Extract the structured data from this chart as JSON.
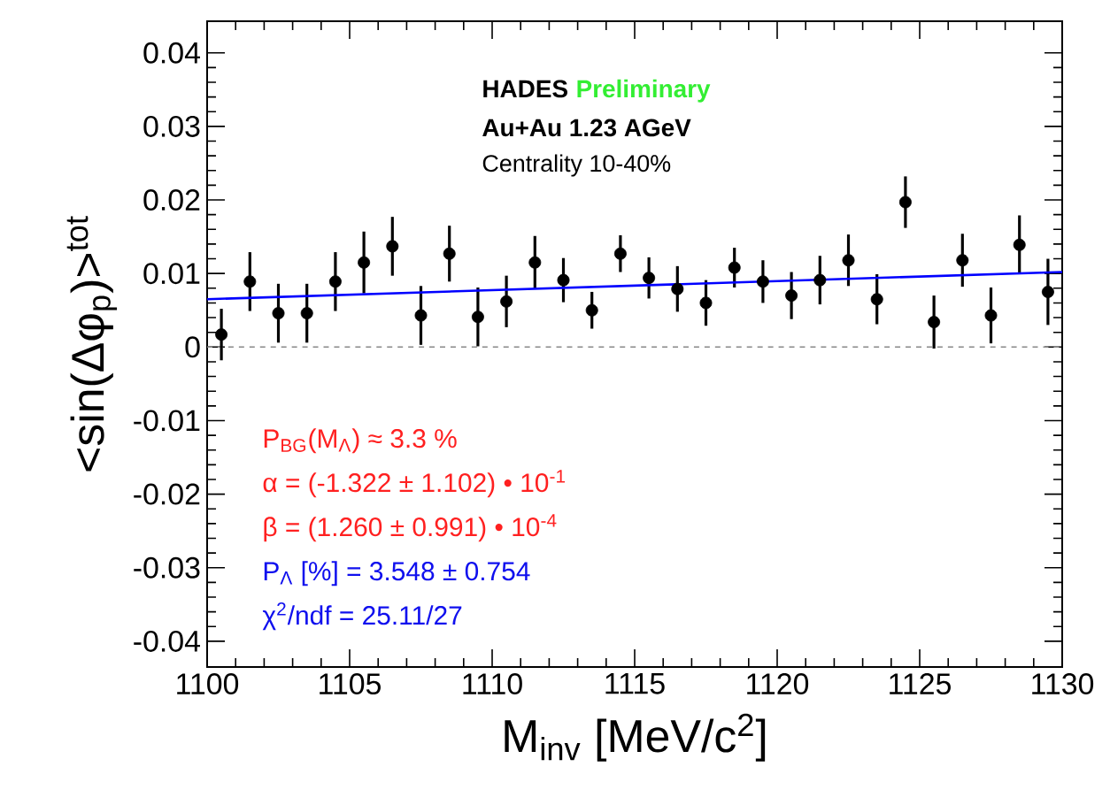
{
  "chart_data": {
    "type": "scatter",
    "xlabel": "M$_{inv}$ [MeV/c$^{2}$]",
    "ylabel": "<sin(Δφ$_{p}$)>$^{tot}$",
    "xlim": [
      1100,
      1130
    ],
    "ylim": [
      -0.0435,
      0.0443
    ],
    "xticks": [
      1100,
      1105,
      1110,
      1115,
      1120,
      1125,
      1130
    ],
    "yticks": [
      -0.04,
      -0.03,
      -0.02,
      -0.01,
      0,
      0.01,
      0.02,
      0.03,
      0.04
    ],
    "grid": false,
    "series": [
      {
        "color": "#000000",
        "x": [
          1100.5,
          1101.5,
          1102.5,
          1103.5,
          1104.5,
          1105.5,
          1106.5,
          1107.5,
          1108.5,
          1109.5,
          1110.5,
          1111.5,
          1112.5,
          1113.5,
          1114.5,
          1115.5,
          1116.5,
          1117.5,
          1118.5,
          1119.5,
          1120.5,
          1121.5,
          1122.5,
          1123.5,
          1124.5,
          1125.5,
          1126.5,
          1127.5,
          1128.5,
          1129.5
        ],
        "values": [
          0.0017,
          0.0089,
          0.0046,
          0.0046,
          0.0089,
          0.0115,
          0.0137,
          0.0043,
          0.0127,
          0.0041,
          0.0062,
          0.0115,
          0.0091,
          0.005,
          0.0127,
          0.0094,
          0.0079,
          0.006,
          0.0108,
          0.0089,
          0.007,
          0.0091,
          0.0118,
          0.0065,
          0.0197,
          0.0034,
          0.0118,
          0.0043,
          0.0139,
          0.0075
        ],
        "errors": [
          0.0035,
          0.004,
          0.004,
          0.004,
          0.004,
          0.0042,
          0.004,
          0.004,
          0.0038,
          0.004,
          0.0035,
          0.0036,
          0.003,
          0.0025,
          0.0025,
          0.0028,
          0.0031,
          0.0031,
          0.0027,
          0.0029,
          0.0032,
          0.0033,
          0.0035,
          0.0034,
          0.0035,
          0.0036,
          0.0036,
          0.0038,
          0.004,
          0.0045
        ]
      },
      {
        "type": "line",
        "color": "#0000ff",
        "line_style": "solid",
        "x": [
          1100,
          1130
        ],
        "values": [
          0.0065,
          0.0102
        ]
      }
    ],
    "ref_lines": [
      {
        "axis": "y",
        "value": 0,
        "color": "#888888",
        "line_style": "dashed"
      }
    ],
    "annotations": [
      "HADES",
      "Preliminary",
      "Au+Au 1.23 AGeV",
      "Centrality 10-40%",
      "P$_{BG}$(M$_{Λ}$) ≈ 3.3 %",
      "α = (-1.322 ± 1.102) • 10$^{-1}$",
      "β = (1.260 ± 0.991) • 10$^{-4}$",
      "P$_{Λ}$ [%] = 3.548 ± 0.754",
      "χ$^{2}$/ndf  = 25.11/27"
    ]
  }
}
